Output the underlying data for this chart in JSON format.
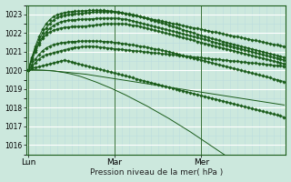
{
  "xlabel": "Pression niveau de la mer( hPa )",
  "bg_color": "#cce8dd",
  "grid_color_major": "#aad4cc",
  "grid_color_minor": "#bbddd6",
  "line_color": "#1a5c1a",
  "ylim": [
    1015.5,
    1023.5
  ],
  "yticks": [
    1016,
    1017,
    1018,
    1019,
    1020,
    1021,
    1022,
    1023
  ],
  "day_labels": [
    "Lun",
    "Mar",
    "Mer"
  ],
  "day_positions": [
    0,
    24,
    48
  ],
  "xlim": [
    -0.5,
    71.5
  ],
  "lines": [
    {
      "y": [
        1020.0,
        1020.1,
        1020.15,
        1020.2,
        1020.25,
        1020.3,
        1020.35,
        1020.4,
        1020.45,
        1020.5,
        1020.55,
        1020.5,
        1020.45,
        1020.4,
        1020.35,
        1020.3,
        1020.25,
        1020.2,
        1020.15,
        1020.1,
        1020.05,
        1020.0,
        1019.95,
        1019.9,
        1019.85,
        1019.8,
        1019.75,
        1019.7,
        1019.65,
        1019.6,
        1019.55,
        1019.5,
        1019.45,
        1019.4,
        1019.35,
        1019.3,
        1019.25,
        1019.2,
        1019.15,
        1019.1,
        1019.05,
        1019.0,
        1018.95,
        1018.9,
        1018.85,
        1018.8,
        1018.75,
        1018.7,
        1018.65,
        1018.6,
        1018.55,
        1018.5,
        1018.45,
        1018.4,
        1018.35,
        1018.3,
        1018.25,
        1018.2,
        1018.15,
        1018.1,
        1018.05,
        1018.0,
        1017.95,
        1017.9,
        1017.85,
        1017.8,
        1017.75,
        1017.7,
        1017.65,
        1017.6,
        1017.55,
        1017.5
      ],
      "marker": true
    },
    {
      "y": [
        1020.0,
        1020.2,
        1020.4,
        1020.6,
        1020.75,
        1020.85,
        1020.9,
        1020.95,
        1021.0,
        1021.05,
        1021.1,
        1021.15,
        1021.2,
        1021.22,
        1021.24,
        1021.26,
        1021.28,
        1021.3,
        1021.28,
        1021.26,
        1021.24,
        1021.22,
        1021.2,
        1021.18,
        1021.16,
        1021.14,
        1021.12,
        1021.1,
        1021.08,
        1021.06,
        1021.04,
        1021.02,
        1021.0,
        1020.98,
        1020.96,
        1020.94,
        1020.92,
        1020.9,
        1020.88,
        1020.86,
        1020.84,
        1020.82,
        1020.8,
        1020.78,
        1020.76,
        1020.74,
        1020.72,
        1020.7,
        1020.68,
        1020.66,
        1020.64,
        1020.62,
        1020.6,
        1020.58,
        1020.56,
        1020.54,
        1020.52,
        1020.5,
        1020.48,
        1020.46,
        1020.44,
        1020.42,
        1020.4,
        1020.38,
        1020.36,
        1020.34,
        1020.32,
        1020.3,
        1020.28,
        1020.26,
        1020.24,
        1020.22
      ],
      "marker": true
    },
    {
      "y": [
        1020.0,
        1020.3,
        1020.6,
        1020.85,
        1021.05,
        1021.2,
        1021.3,
        1021.38,
        1021.43,
        1021.47,
        1021.5,
        1021.52,
        1021.54,
        1021.55,
        1021.56,
        1021.57,
        1021.58,
        1021.58,
        1021.58,
        1021.57,
        1021.56,
        1021.55,
        1021.54,
        1021.52,
        1021.5,
        1021.48,
        1021.45,
        1021.42,
        1021.39,
        1021.36,
        1021.33,
        1021.3,
        1021.27,
        1021.24,
        1021.2,
        1021.16,
        1021.12,
        1021.08,
        1021.04,
        1021.0,
        1020.95,
        1020.9,
        1020.85,
        1020.8,
        1020.75,
        1020.7,
        1020.65,
        1020.6,
        1020.55,
        1020.5,
        1020.45,
        1020.4,
        1020.35,
        1020.3,
        1020.25,
        1020.2,
        1020.15,
        1020.1,
        1020.05,
        1020.0,
        1019.95,
        1019.9,
        1019.85,
        1019.8,
        1019.75,
        1019.7,
        1019.65,
        1019.6,
        1019.55,
        1019.5,
        1019.45,
        1019.4
      ],
      "marker": true
    },
    {
      "y": [
        1020.0,
        1020.5,
        1021.0,
        1021.4,
        1021.7,
        1021.9,
        1022.05,
        1022.15,
        1022.22,
        1022.27,
        1022.3,
        1022.32,
        1022.34,
        1022.35,
        1022.36,
        1022.37,
        1022.38,
        1022.4,
        1022.42,
        1022.44,
        1022.46,
        1022.5,
        1022.5,
        1022.5,
        1022.5,
        1022.5,
        1022.5,
        1022.48,
        1022.45,
        1022.42,
        1022.4,
        1022.35,
        1022.3,
        1022.25,
        1022.2,
        1022.15,
        1022.1,
        1022.05,
        1022.0,
        1021.95,
        1021.9,
        1021.85,
        1021.8,
        1021.75,
        1021.7,
        1021.65,
        1021.6,
        1021.55,
        1021.5,
        1021.45,
        1021.4,
        1021.35,
        1021.3,
        1021.25,
        1021.2,
        1021.15,
        1021.1,
        1021.05,
        1021.0,
        1020.95,
        1020.9,
        1020.85,
        1020.8,
        1020.75,
        1020.7,
        1020.65,
        1020.6,
        1020.55,
        1020.5,
        1020.45,
        1020.4,
        1020.35
      ],
      "marker": true
    },
    {
      "y": [
        1020.0,
        1020.6,
        1021.1,
        1021.5,
        1021.8,
        1022.05,
        1022.25,
        1022.4,
        1022.52,
        1022.6,
        1022.65,
        1022.68,
        1022.7,
        1022.72,
        1022.73,
        1022.74,
        1022.75,
        1022.76,
        1022.77,
        1022.78,
        1022.79,
        1022.8,
        1022.8,
        1022.8,
        1022.8,
        1022.79,
        1022.77,
        1022.74,
        1022.7,
        1022.65,
        1022.6,
        1022.55,
        1022.5,
        1022.45,
        1022.4,
        1022.35,
        1022.3,
        1022.25,
        1022.2,
        1022.15,
        1022.1,
        1022.05,
        1022.0,
        1021.95,
        1021.9,
        1021.85,
        1021.8,
        1021.75,
        1021.7,
        1021.65,
        1021.6,
        1021.55,
        1021.5,
        1021.45,
        1021.4,
        1021.35,
        1021.3,
        1021.25,
        1021.2,
        1021.15,
        1021.1,
        1021.05,
        1021.0,
        1020.95,
        1020.9,
        1020.85,
        1020.8,
        1020.75,
        1020.7,
        1020.65,
        1020.6,
        1020.55
      ],
      "marker": true
    },
    {
      "y": [
        1020.0,
        1020.65,
        1021.2,
        1021.65,
        1022.0,
        1022.28,
        1022.5,
        1022.68,
        1022.82,
        1022.9,
        1022.95,
        1022.98,
        1023.0,
        1023.02,
        1023.04,
        1023.06,
        1023.08,
        1023.1,
        1023.12,
        1023.13,
        1023.14,
        1023.15,
        1023.15,
        1023.14,
        1023.12,
        1023.1,
        1023.07,
        1023.04,
        1023.0,
        1022.96,
        1022.92,
        1022.88,
        1022.84,
        1022.8,
        1022.76,
        1022.72,
        1022.68,
        1022.64,
        1022.6,
        1022.56,
        1022.52,
        1022.48,
        1022.44,
        1022.4,
        1022.36,
        1022.32,
        1022.28,
        1022.24,
        1022.2,
        1022.16,
        1022.12,
        1022.08,
        1022.04,
        1022.0,
        1021.96,
        1021.92,
        1021.88,
        1021.84,
        1021.8,
        1021.76,
        1021.72,
        1021.68,
        1021.64,
        1021.6,
        1021.56,
        1021.52,
        1021.48,
        1021.44,
        1021.4,
        1021.36,
        1021.32,
        1021.28
      ],
      "marker": true
    },
    {
      "y": [
        1020.0,
        1020.7,
        1021.3,
        1021.8,
        1022.2,
        1022.5,
        1022.72,
        1022.88,
        1022.98,
        1023.05,
        1023.1,
        1023.13,
        1023.15,
        1023.17,
        1023.18,
        1023.19,
        1023.2,
        1023.21,
        1023.22,
        1023.22,
        1023.22,
        1023.21,
        1023.2,
        1023.18,
        1023.16,
        1023.13,
        1023.1,
        1023.06,
        1023.02,
        1022.98,
        1022.93,
        1022.88,
        1022.83,
        1022.78,
        1022.72,
        1022.66,
        1022.6,
        1022.54,
        1022.48,
        1022.42,
        1022.36,
        1022.3,
        1022.24,
        1022.18,
        1022.12,
        1022.06,
        1022.0,
        1021.94,
        1021.88,
        1021.82,
        1021.76,
        1021.7,
        1021.65,
        1021.6,
        1021.55,
        1021.5,
        1021.45,
        1021.4,
        1021.35,
        1021.3,
        1021.25,
        1021.2,
        1021.15,
        1021.1,
        1021.05,
        1021.0,
        1020.95,
        1020.9,
        1020.85,
        1020.8,
        1020.75,
        1020.7
      ],
      "marker": true
    },
    {
      "y": [
        1020.0,
        1020.0,
        1020.0,
        1020.0,
        1020.0,
        1019.99,
        1019.98,
        1019.97,
        1019.95,
        1019.93,
        1019.91,
        1019.89,
        1019.87,
        1019.85,
        1019.83,
        1019.81,
        1019.79,
        1019.76,
        1019.73,
        1019.7,
        1019.67,
        1019.64,
        1019.61,
        1019.58,
        1019.55,
        1019.52,
        1019.49,
        1019.46,
        1019.43,
        1019.4,
        1019.37,
        1019.34,
        1019.31,
        1019.28,
        1019.25,
        1019.22,
        1019.19,
        1019.16,
        1019.13,
        1019.1,
        1019.07,
        1019.04,
        1019.01,
        1018.98,
        1018.95,
        1018.92,
        1018.89,
        1018.86,
        1018.83,
        1018.8,
        1018.77,
        1018.74,
        1018.71,
        1018.68,
        1018.65,
        1018.62,
        1018.59,
        1018.56,
        1018.53,
        1018.5,
        1018.47,
        1018.44,
        1018.41,
        1018.38,
        1018.35,
        1018.32,
        1018.29,
        1018.26,
        1018.23,
        1018.2,
        1018.17,
        1018.14
      ],
      "marker": false
    },
    {
      "y": [
        1020.05,
        1020.04,
        1020.03,
        1020.02,
        1020.01,
        1020.0,
        1019.99,
        1019.97,
        1019.94,
        1019.91,
        1019.88,
        1019.84,
        1019.8,
        1019.75,
        1019.7,
        1019.64,
        1019.57,
        1019.5,
        1019.43,
        1019.36,
        1019.28,
        1019.2,
        1019.12,
        1019.04,
        1018.95,
        1018.86,
        1018.77,
        1018.68,
        1018.58,
        1018.48,
        1018.38,
        1018.28,
        1018.18,
        1018.08,
        1017.97,
        1017.86,
        1017.75,
        1017.64,
        1017.53,
        1017.42,
        1017.3,
        1017.18,
        1017.06,
        1016.94,
        1016.82,
        1016.7,
        1016.57,
        1016.44,
        1016.31,
        1016.18,
        1016.05,
        1015.92,
        1015.79,
        1015.66,
        1015.53,
        1015.4,
        1015.3,
        1015.2,
        1015.1,
        1015.0,
        1015.0,
        1015.0,
        1015.0,
        1015.0,
        1015.0,
        1015.0,
        1015.0,
        1015.0,
        1015.0,
        1015.0,
        1015.0,
        1015.0
      ],
      "marker": false
    }
  ]
}
